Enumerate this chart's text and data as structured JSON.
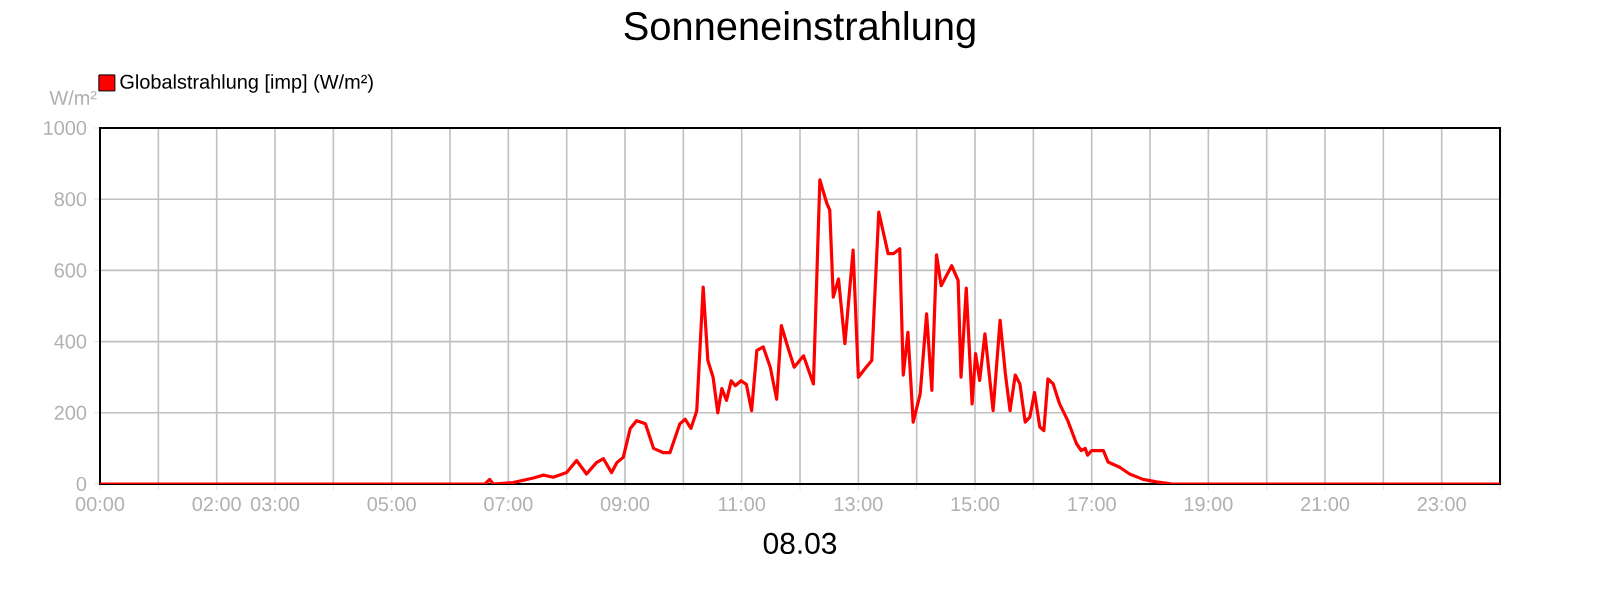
{
  "chart_data": {
    "type": "line",
    "title": "Sonneneinstrahlung",
    "xlabel": "08.03",
    "ylabel": "W/m²",
    "xlim": [
      0,
      24
    ],
    "ylim": [
      0,
      1000
    ],
    "yticks": [
      0,
      200,
      400,
      600,
      800,
      1000
    ],
    "xticks": [
      {
        "value": 0,
        "label": "00:00"
      },
      {
        "value": 1,
        "label": null
      },
      {
        "value": 2,
        "label": "02:00"
      },
      {
        "value": 3,
        "label": "03:00"
      },
      {
        "value": 4,
        "label": null
      },
      {
        "value": 5,
        "label": "05:00"
      },
      {
        "value": 6,
        "label": null
      },
      {
        "value": 7,
        "label": "07:00"
      },
      {
        "value": 8,
        "label": null
      },
      {
        "value": 9,
        "label": "09:00"
      },
      {
        "value": 10,
        "label": null
      },
      {
        "value": 11,
        "label": "11:00"
      },
      {
        "value": 12,
        "label": null
      },
      {
        "value": 13,
        "label": "13:00"
      },
      {
        "value": 14,
        "label": null
      },
      {
        "value": 15,
        "label": "15:00"
      },
      {
        "value": 16,
        "label": null
      },
      {
        "value": 17,
        "label": "17:00"
      },
      {
        "value": 18,
        "label": null
      },
      {
        "value": 19,
        "label": "19:00"
      },
      {
        "value": 20,
        "label": null
      },
      {
        "value": 21,
        "label": "21:00"
      },
      {
        "value": 22,
        "label": null
      },
      {
        "value": 23,
        "label": "23:00"
      },
      {
        "value": 24,
        "label": null
      }
    ],
    "grid": true,
    "legend": "top left",
    "marker": "none",
    "line_style": "solid",
    "series": [
      {
        "name": "Globalstrahlung [imp] (W/m²)",
        "color": "#ff0000",
        "x": [
          0,
          6.6,
          6.68,
          6.74,
          7.08,
          7.43,
          7.6,
          7.77,
          8.0,
          8.17,
          8.34,
          8.51,
          8.63,
          8.77,
          8.86,
          8.97,
          9.09,
          9.2,
          9.35,
          9.49,
          9.66,
          9.77,
          9.94,
          10.03,
          10.13,
          10.23,
          10.34,
          10.42,
          10.51,
          10.59,
          10.66,
          10.74,
          10.82,
          10.89,
          10.99,
          11.08,
          11.17,
          11.26,
          11.37,
          11.49,
          11.6,
          11.68,
          11.79,
          11.9,
          12.06,
          12.23,
          12.34,
          12.46,
          12.51,
          12.57,
          12.66,
          12.77,
          12.91,
          13.0,
          13.12,
          13.23,
          13.35,
          13.51,
          13.6,
          13.71,
          13.77,
          13.85,
          13.94,
          14.06,
          14.17,
          14.26,
          14.34,
          14.42,
          14.6,
          14.71,
          14.76,
          14.85,
          14.95,
          15.01,
          15.08,
          15.17,
          15.31,
          15.43,
          15.52,
          15.6,
          15.69,
          15.77,
          15.86,
          15.94,
          16.02,
          16.11,
          16.18,
          16.25,
          16.34,
          16.45,
          16.59,
          16.74,
          16.82,
          16.89,
          16.93,
          17.0,
          17.2,
          17.28,
          17.48,
          17.65,
          17.88,
          18.11,
          18.38,
          24
        ],
        "values": [
          0,
          0,
          13,
          0,
          4,
          17,
          25,
          19,
          32,
          66,
          28,
          60,
          71,
          32,
          60,
          75,
          156,
          178,
          169,
          100,
          88,
          88,
          169,
          182,
          156,
          206,
          553,
          347,
          300,
          200,
          268,
          235,
          290,
          276,
          290,
          280,
          206,
          375,
          385,
          328,
          238,
          445,
          385,
          328,
          360,
          281,
          854,
          788,
          769,
          525,
          576,
          394,
          657,
          300,
          325,
          347,
          764,
          647,
          647,
          661,
          306,
          426,
          174,
          253,
          478,
          263,
          644,
          557,
          613,
          572,
          300,
          550,
          225,
          366,
          291,
          422,
          206,
          460,
          310,
          206,
          306,
          281,
          174,
          188,
          257,
          160,
          150,
          295,
          281,
          225,
          178,
          113,
          94,
          100,
          81,
          94,
          94,
          62,
          47,
          28,
          13,
          6,
          0,
          0
        ]
      }
    ]
  }
}
